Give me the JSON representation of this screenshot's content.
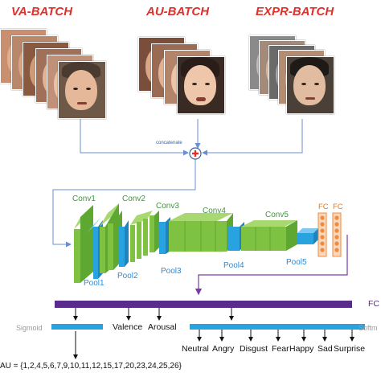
{
  "batches": [
    {
      "title": "VA-BATCH"
    },
    {
      "title": "AU-BATCH"
    },
    {
      "title": "EXPR-BATCH"
    }
  ],
  "concatenate_label": "concatenate",
  "network": {
    "conv_labels": [
      "Conv1",
      "Conv2",
      "Conv3",
      "Conv4",
      "Conv5"
    ],
    "pool_labels": [
      "Pool1",
      "Pool2",
      "Pool3",
      "Pool4",
      "Pool5"
    ],
    "fc_labels": [
      "FC",
      "FC"
    ]
  },
  "output": {
    "fc_label": "FC",
    "sigmoid_label": "Sigmoid",
    "softmax_label": "Softm",
    "valence": "Valence",
    "arousal": "Arousal",
    "emotions": [
      "Neutral",
      "Angry",
      "Disgust",
      "Fear",
      "Happy",
      "Sad",
      "Surprise"
    ],
    "au_list": "AU = {1,2,4,5,6,7,9,10,11,12,15,17,20,23,24,25,26}"
  },
  "colors": {
    "title_red": "#e0302a",
    "conv_green": "#7fc241",
    "pool_blue": "#29a3e0",
    "fc_orange": "#f08a3c",
    "fc_bar_purple": "#5a2a8c",
    "arrow_blue": "#6a8fd0",
    "arrow_purple": "#7a3aa8"
  }
}
